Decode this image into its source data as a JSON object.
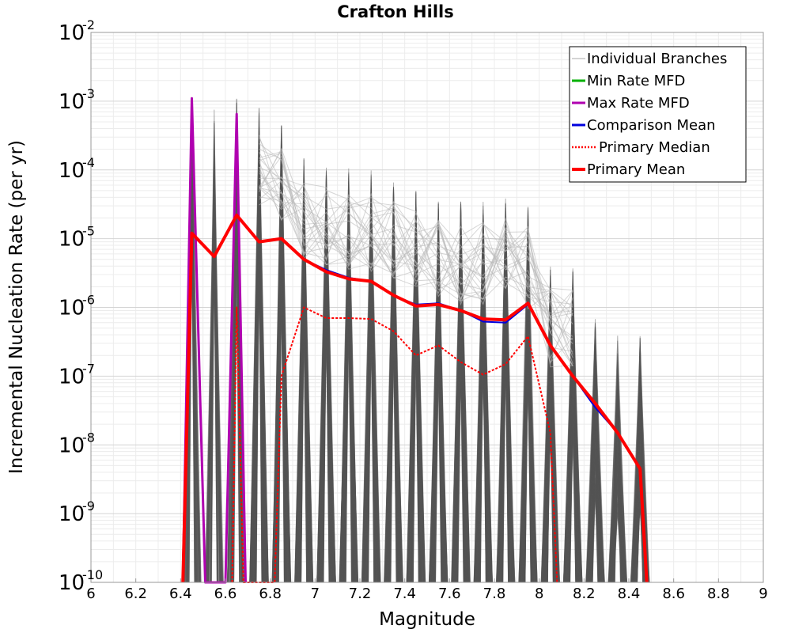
{
  "chart_data": {
    "type": "line",
    "title": "Crafton Hills",
    "xlabel": "Magnitude",
    "ylabel": "Incremental Nucleation Rate (per yr)",
    "xlim": [
      6,
      9
    ],
    "ylim": [
      1e-10,
      0.01
    ],
    "yscale": "log",
    "grid": true,
    "legend_position": "top-right",
    "x_ticks": [
      "6",
      "6.2",
      "6.4",
      "6.6",
      "6.8",
      "7",
      "7.2",
      "7.4",
      "7.6",
      "7.8",
      "8",
      "8.2",
      "8.4",
      "8.6",
      "8.8",
      "9"
    ],
    "y_ticks": [
      {
        "base": "10",
        "exp": "-2"
      },
      {
        "base": "10",
        "exp": "-3"
      },
      {
        "base": "10",
        "exp": "-4"
      },
      {
        "base": "10",
        "exp": "-5"
      },
      {
        "base": "10",
        "exp": "-6"
      },
      {
        "base": "10",
        "exp": "-7"
      },
      {
        "base": "10",
        "exp": "-8"
      },
      {
        "base": "10",
        "exp": "-9"
      },
      {
        "base": "10",
        "exp": "-10"
      }
    ],
    "spike_x": [
      6.45,
      6.55,
      6.65,
      6.75,
      6.85,
      6.95,
      7.05,
      7.15,
      7.25,
      7.35,
      7.45,
      7.55,
      7.65,
      7.75,
      7.85,
      7.95,
      8.05,
      8.15,
      8.25,
      8.35,
      8.45
    ],
    "spike_peaks": [
      0.0009,
      0.0008,
      0.0012,
      0.0008,
      0.00045,
      0.00015,
      0.00012,
      0.00011,
      0.0001,
      7e-05,
      5e-05,
      4e-05,
      3.5e-05,
      3.5e-05,
      4e-05,
      3e-05,
      4e-06,
      4e-06,
      7e-07,
      4e-07,
      4e-07
    ],
    "series": [
      {
        "name": "Individual Branches",
        "color": "#555555",
        "x": [],
        "values": []
      },
      {
        "name": "Min Rate MFD",
        "color": "#00b000",
        "x": [],
        "values": []
      },
      {
        "name": "Max Rate MFD",
        "color": "#b000b0",
        "x": [
          6.41,
          6.45,
          6.51,
          6.6,
          6.65,
          6.69
        ],
        "values": [
          1e-10,
          0.0011,
          1e-10,
          1e-10,
          0.00065,
          1e-10
        ]
      },
      {
        "name": "Comparison Mean",
        "color": "#0000dd",
        "x": [
          6.41,
          6.45,
          6.55,
          6.65,
          6.75,
          6.85,
          6.95,
          7.05,
          7.15,
          7.25,
          7.35,
          7.45,
          7.55,
          7.65,
          7.75,
          7.85,
          7.95,
          8.05,
          8.15,
          8.25,
          8.35,
          8.45,
          8.48
        ],
        "values": [
          1e-10,
          1.2e-05,
          5.5e-06,
          2.2e-05,
          9e-06,
          1e-05,
          5e-06,
          3.5e-06,
          2.7e-06,
          2.4e-06,
          1.5e-06,
          1.1e-06,
          1.15e-06,
          9e-07,
          6.2e-07,
          6e-07,
          1.1e-06,
          2.8e-07,
          1e-07,
          3.5e-08,
          1.5e-08,
          4.5e-09,
          1e-10
        ]
      },
      {
        "name": "Primary Median",
        "color": "#ff0000",
        "x": [
          6.63,
          6.65,
          6.68,
          6.82,
          6.85,
          6.95,
          7.05,
          7.15,
          7.25,
          7.35,
          7.45,
          7.55,
          7.65,
          7.75,
          7.85,
          7.95,
          8.05,
          8.08
        ],
        "values": [
          1e-10,
          1e-06,
          1e-10,
          1e-10,
          1e-07,
          1e-06,
          7e-07,
          7e-07,
          6.8e-07,
          4.5e-07,
          2e-07,
          2.8e-07,
          1.6e-07,
          1.05e-07,
          1.5e-07,
          3.8e-07,
          1.5e-08,
          1e-10
        ]
      },
      {
        "name": "Primary Mean",
        "color": "#ff0000",
        "x": [
          6.41,
          6.45,
          6.55,
          6.65,
          6.75,
          6.85,
          6.95,
          7.05,
          7.15,
          7.25,
          7.35,
          7.45,
          7.55,
          7.65,
          7.75,
          7.85,
          7.95,
          8.05,
          8.15,
          8.25,
          8.35,
          8.45,
          8.48
        ],
        "values": [
          1e-10,
          1.2e-05,
          5.5e-06,
          2.2e-05,
          9e-06,
          1e-05,
          5e-06,
          3.3e-06,
          2.6e-06,
          2.4e-06,
          1.5e-06,
          1.05e-06,
          1.1e-06,
          9e-07,
          6.8e-07,
          6.6e-07,
          1.15e-06,
          2.8e-07,
          1e-07,
          4e-08,
          1.5e-08,
          4.5e-09,
          1e-10
        ]
      }
    ]
  }
}
